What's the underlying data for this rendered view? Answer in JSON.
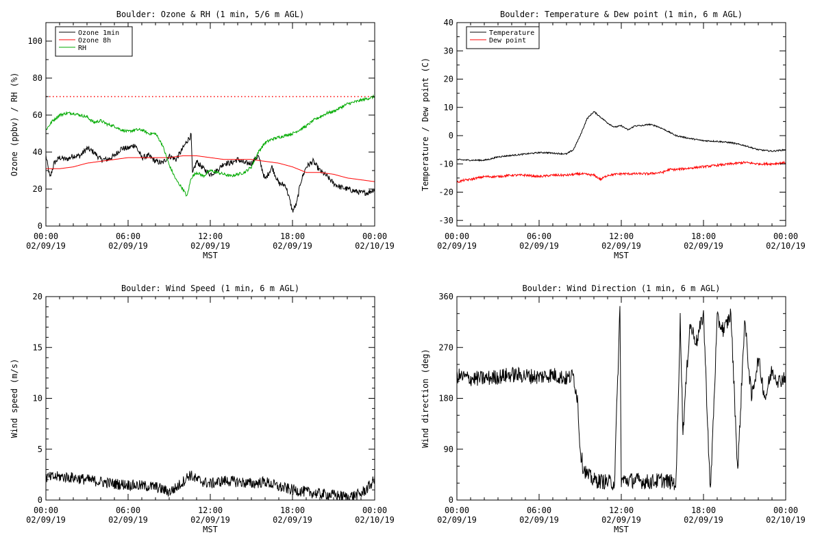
{
  "chart_data": [
    {
      "type": "line",
      "title": "Boulder: Ozone & RH (1 min, 5/6 m AGL)",
      "xlabel": "MST",
      "ylabel": "Ozone (ppbv) / RH (%)",
      "x_ticks": [
        {
          "hours": 0,
          "time": "00:00",
          "date": "02/09/19"
        },
        {
          "hours": 6,
          "time": "06:00",
          "date": "02/09/19"
        },
        {
          "hours": 12,
          "time": "12:00",
          "date": "02/09/19"
        },
        {
          "hours": 18,
          "time": "18:00",
          "date": "02/09/19"
        },
        {
          "hours": 24,
          "time": "00:00",
          "date": "02/10/19"
        }
      ],
      "xlim": [
        0,
        24
      ],
      "ylim": [
        0,
        110
      ],
      "y_ticks": [
        0,
        20,
        40,
        60,
        80,
        100
      ],
      "y_ticks_unlabeled": [
        10,
        30,
        50,
        70,
        90,
        110
      ],
      "grid": false,
      "legend": "top-left",
      "reference_lines": [
        {
          "y": 70,
          "style": "dotted",
          "color": "#ff0000"
        }
      ],
      "series": [
        {
          "name": "Ozone 1min",
          "color": "#000000",
          "x": [
            0,
            0.3,
            0.6,
            1,
            1.5,
            2,
            2.5,
            3,
            3.5,
            4,
            4.5,
            5,
            5.5,
            6,
            6.5,
            7,
            7.5,
            8,
            8.5,
            9,
            9.5,
            10,
            10.3,
            10.6,
            10.7,
            11,
            11.5,
            12,
            12.5,
            13,
            13.5,
            14,
            14.5,
            15,
            15.5,
            16,
            16.5,
            17,
            17.5,
            17.8,
            18,
            18.3,
            18.6,
            19,
            19.5,
            20,
            20.5,
            21,
            21.5,
            22,
            22.5,
            23,
            23.5,
            24
          ],
          "values": [
            38,
            26,
            34,
            37,
            36,
            38,
            38,
            42,
            40,
            36,
            36,
            38,
            42,
            42,
            44,
            37,
            38,
            35,
            34,
            38,
            36,
            42,
            46,
            49,
            28,
            35,
            31,
            28,
            30,
            34,
            34,
            36,
            34,
            34,
            38,
            25,
            32,
            23,
            22,
            14,
            8,
            12,
            24,
            32,
            35,
            30,
            27,
            23,
            21,
            20,
            19,
            18,
            18,
            20
          ],
          "noise": 1.5
        },
        {
          "name": "Ozone 8h",
          "color": "#ff0000",
          "x": [
            0,
            1,
            2,
            3,
            4,
            5,
            6,
            7,
            8,
            9,
            10,
            11,
            12,
            13,
            14,
            15,
            16,
            17,
            18,
            19,
            20,
            21,
            22,
            23,
            24
          ],
          "values": [
            31,
            31,
            32,
            34,
            35,
            36,
            37,
            37,
            37,
            37,
            38,
            38,
            37,
            36,
            36,
            36,
            35,
            34,
            32,
            29,
            29,
            28,
            26,
            25,
            24
          ],
          "noise": 0
        },
        {
          "name": "RH",
          "color": "#00aa00",
          "x": [
            0,
            0.5,
            1,
            1.5,
            2,
            2.5,
            3,
            3.5,
            4,
            4.5,
            5,
            5.5,
            6,
            6.5,
            7,
            7.5,
            8,
            8.5,
            9,
            9.5,
            10,
            10.3,
            10.6,
            11,
            11.5,
            12,
            12.5,
            13,
            13.5,
            14,
            14.5,
            15,
            15.5,
            16,
            16.5,
            17,
            17.5,
            18,
            18.5,
            19,
            19.5,
            20,
            20.5,
            21,
            21.5,
            22,
            22.5,
            23,
            23.5,
            24
          ],
          "values": [
            52,
            57,
            60,
            61,
            61,
            60,
            59,
            56,
            57,
            55,
            54,
            52,
            51,
            52,
            52,
            50,
            50,
            44,
            33,
            25,
            20,
            16,
            26,
            29,
            27,
            30,
            29,
            28,
            27,
            28,
            29,
            32,
            40,
            45,
            47,
            48,
            49,
            50,
            52,
            54,
            57,
            59,
            61,
            62,
            64,
            66,
            67,
            68,
            69,
            70
          ],
          "noise": 0.8
        }
      ]
    },
    {
      "type": "line",
      "title": "Boulder: Temperature & Dew point (1 min, 6 m AGL)",
      "xlabel": "MST",
      "ylabel": "Temperature / Dew point (C)",
      "x_ticks": [
        {
          "hours": 0,
          "time": "00:00",
          "date": "02/09/19"
        },
        {
          "hours": 6,
          "time": "06:00",
          "date": "02/09/19"
        },
        {
          "hours": 12,
          "time": "12:00",
          "date": "02/09/19"
        },
        {
          "hours": 18,
          "time": "18:00",
          "date": "02/09/19"
        },
        {
          "hours": 24,
          "time": "00:00",
          "date": "02/10/19"
        }
      ],
      "xlim": [
        0,
        24
      ],
      "ylim": [
        -32,
        40
      ],
      "y_ticks": [
        -30,
        -20,
        -10,
        0,
        10,
        20,
        30,
        40
      ],
      "y_ticks_unlabeled": [
        -25,
        -15,
        -5,
        5,
        15,
        25,
        35
      ],
      "grid": false,
      "legend": "top-left",
      "series": [
        {
          "name": "Temperature",
          "color": "#000000",
          "x": [
            0,
            1,
            2,
            2.5,
            3,
            4,
            5,
            6,
            6.5,
            7,
            8,
            8.5,
            9,
            9.5,
            10,
            10.5,
            11,
            11.5,
            12,
            12.5,
            13,
            13.5,
            14,
            14.5,
            15,
            16,
            17,
            18,
            19,
            20,
            21,
            22,
            23,
            24
          ],
          "values": [
            -8.5,
            -8.7,
            -8.7,
            -8.2,
            -7.5,
            -7,
            -6.5,
            -6,
            -6,
            -6.2,
            -6.5,
            -5,
            0,
            6,
            8.5,
            6.5,
            4.5,
            3,
            3.5,
            2,
            3.5,
            3.5,
            4,
            3.5,
            2.5,
            0,
            -1,
            -1.8,
            -2,
            -2.5,
            -3.5,
            -5,
            -5.5,
            -5
          ],
          "noise": 0.25
        },
        {
          "name": "Dew point",
          "color": "#ff0000",
          "x": [
            0,
            0.5,
            1,
            1.5,
            2,
            3,
            4,
            5,
            6,
            7,
            8,
            9,
            10,
            10.5,
            11,
            12,
            13,
            14,
            15,
            15.5,
            16,
            17,
            18,
            19,
            20,
            21,
            22,
            23,
            24
          ],
          "values": [
            -16.5,
            -15.8,
            -15.5,
            -15,
            -14.5,
            -14.5,
            -14,
            -14,
            -14.5,
            -14,
            -14,
            -13.5,
            -14,
            -15.5,
            -14,
            -13.5,
            -13.5,
            -13.5,
            -13,
            -12,
            -12,
            -11.5,
            -11,
            -10.5,
            -10,
            -9.5,
            -10,
            -10,
            -9.5
          ],
          "noise": 0.4
        }
      ]
    },
    {
      "type": "line",
      "title": "Boulder: Wind Speed (1 min, 6 m AGL)",
      "xlabel": "MST",
      "ylabel": "Wind speed (m/s)",
      "x_ticks": [
        {
          "hours": 0,
          "time": "00:00",
          "date": "02/09/19"
        },
        {
          "hours": 6,
          "time": "06:00",
          "date": "02/09/19"
        },
        {
          "hours": 12,
          "time": "12:00",
          "date": "02/09/19"
        },
        {
          "hours": 18,
          "time": "18:00",
          "date": "02/09/19"
        },
        {
          "hours": 24,
          "time": "00:00",
          "date": "02/10/19"
        }
      ],
      "xlim": [
        0,
        24
      ],
      "ylim": [
        0,
        20
      ],
      "y_ticks": [
        0,
        5,
        10,
        15,
        20
      ],
      "y_ticks_unlabeled": [
        1,
        2,
        3,
        4,
        6,
        7,
        8,
        9,
        11,
        12,
        13,
        14,
        16,
        17,
        18,
        19
      ],
      "grid": false,
      "legend": "none",
      "series": [
        {
          "name": "",
          "color": "#000000",
          "x": [
            0,
            1,
            2,
            3,
            4,
            5,
            6,
            7,
            8,
            9,
            9.5,
            10,
            10.5,
            11,
            12,
            13,
            14,
            15,
            16,
            17,
            18,
            19,
            20,
            21,
            22,
            23,
            23.5,
            24
          ],
          "values": [
            2.2,
            2.3,
            2.2,
            2,
            1.8,
            1.6,
            1.5,
            1.4,
            1.3,
            0.8,
            1.2,
            1.8,
            2.5,
            2,
            1.6,
            1.9,
            1.8,
            1.6,
            1.8,
            1.3,
            1,
            0.8,
            0.6,
            0.5,
            0.3,
            0.6,
            1.2,
            2
          ],
          "noise": 0.55
        }
      ]
    },
    {
      "type": "line",
      "title": "Boulder: Wind Direction (1 min, 6 m AGL)",
      "xlabel": "MST",
      "ylabel": "Wind direction (deg)",
      "x_ticks": [
        {
          "hours": 0,
          "time": "00:00",
          "date": "02/09/19"
        },
        {
          "hours": 6,
          "time": "06:00",
          "date": "02/09/19"
        },
        {
          "hours": 12,
          "time": "12:00",
          "date": "02/09/19"
        },
        {
          "hours": 18,
          "time": "18:00",
          "date": "02/09/19"
        },
        {
          "hours": 24,
          "time": "00:00",
          "date": "02/10/19"
        }
      ],
      "xlim": [
        0,
        24
      ],
      "ylim": [
        0,
        360
      ],
      "y_ticks": [
        0,
        90,
        180,
        270,
        360
      ],
      "y_ticks_unlabeled": [
        30,
        60,
        120,
        150,
        210,
        240,
        300,
        330
      ],
      "grid": false,
      "legend": "none",
      "series": [
        {
          "name": "",
          "color": "#000000",
          "x": [
            0,
            1,
            2,
            3,
            4,
            5,
            6,
            7,
            8,
            8.5,
            8.8,
            9,
            9.2,
            9.5,
            10,
            11,
            11.5,
            11.9,
            12,
            13,
            14,
            15,
            16,
            16.3,
            16.5,
            17,
            17.5,
            18,
            18.5,
            19,
            19.5,
            20,
            20.5,
            21,
            21.5,
            22,
            22.5,
            23,
            23.5,
            24
          ],
          "values": [
            220,
            215,
            215,
            218,
            222,
            220,
            218,
            222,
            215,
            220,
            180,
            90,
            60,
            45,
            35,
            32,
            30,
            340,
            35,
            35,
            32,
            35,
            30,
            320,
            120,
            310,
            280,
            330,
            10,
            320,
            300,
            330,
            50,
            320,
            180,
            250,
            180,
            230,
            210,
            220
          ],
          "noise": 14
        }
      ]
    }
  ]
}
